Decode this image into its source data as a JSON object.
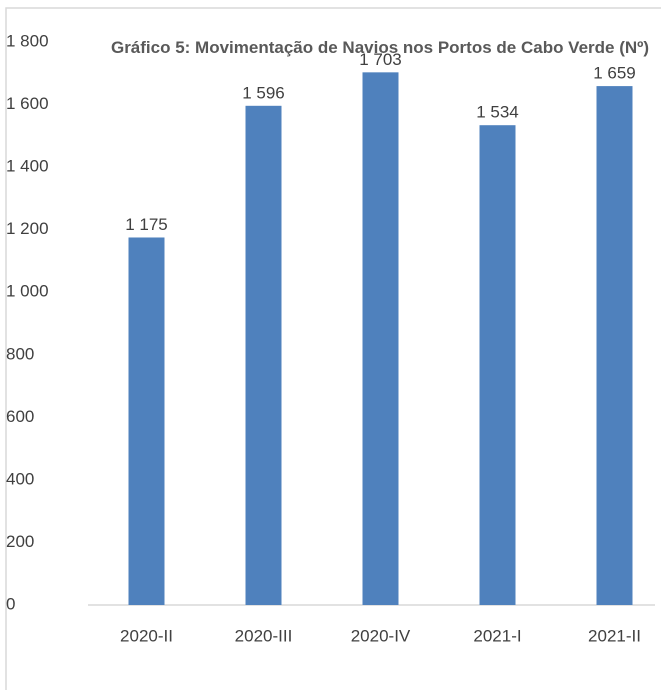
{
  "chart_data": {
    "type": "bar",
    "title": "Gráfico 5: Movimentação de Navios nos Portos de Cabo Verde (Nº)",
    "categories": [
      "2020-II",
      "2020-III",
      "2020-IV",
      "2021-I",
      "2021-II"
    ],
    "values": [
      1175,
      1596,
      1703,
      1534,
      1659
    ],
    "value_labels": [
      "1 175",
      "1 596",
      "1 703",
      "1 534",
      "1 659"
    ],
    "color": "#4f81bd",
    "ylim": [
      0,
      1800
    ],
    "yticks": [
      0,
      200,
      400,
      600,
      800,
      {
        "value": 1000,
        "label": "1 000"
      },
      {
        "value": 1200,
        "label": "1 200"
      },
      {
        "value": 1400,
        "label": "1 400"
      },
      {
        "value": 1600,
        "label": "1 600"
      },
      {
        "value": 1800,
        "label": "1 800"
      }
    ],
    "grid": false
  }
}
